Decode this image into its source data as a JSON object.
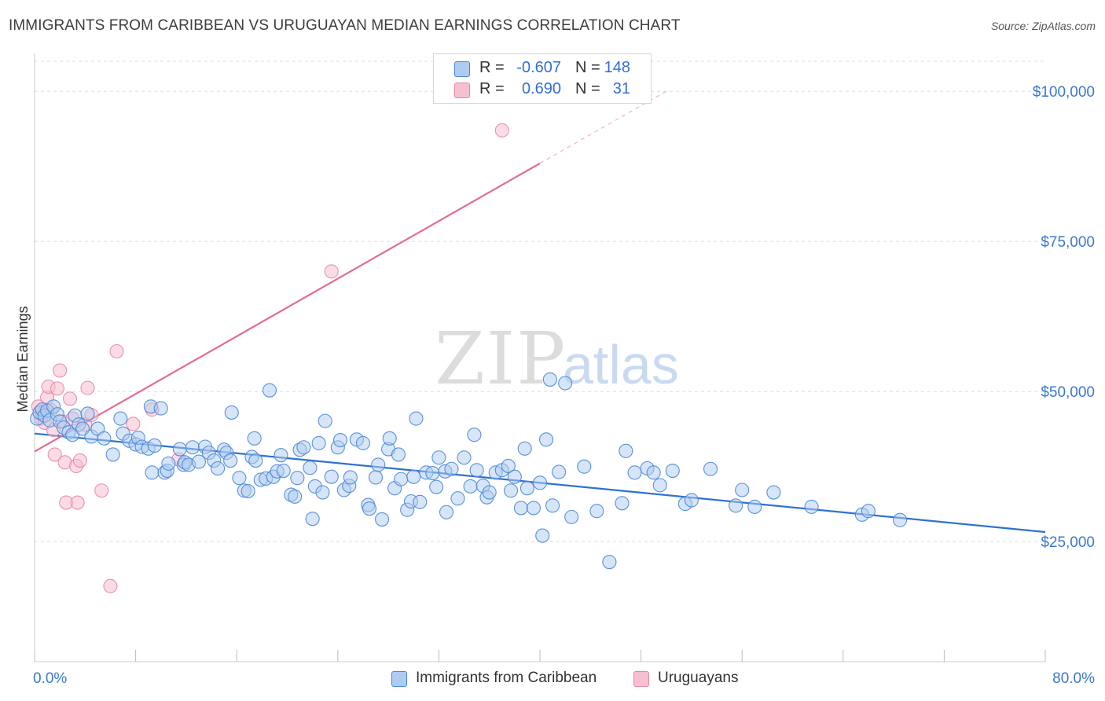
{
  "title": "IMMIGRANTS FROM CARIBBEAN VS URUGUAYAN MEDIAN EARNINGS CORRELATION CHART",
  "source": "Source: ZipAtlas.com",
  "watermark": {
    "part1": "ZIP",
    "part2": "atlas"
  },
  "legend_top": [
    {
      "r_label": "R =",
      "r_value": "-0.607",
      "n_label": "N =",
      "n_value": "148"
    },
    {
      "r_label": "R =",
      "r_value": "0.690",
      "n_label": "N =",
      "n_value": "31"
    }
  ],
  "legend_bottom": [
    {
      "label": "Immigrants from Caribbean"
    },
    {
      "label": "Uruguayans"
    }
  ],
  "colors": {
    "blue_fill": "#aecbf0",
    "blue_stroke": "#4a86d8",
    "blue_line": "#2f72d0",
    "pink_fill": "#f7c0d1",
    "pink_stroke": "#e6889f",
    "pink_line": "#e46b93",
    "grid": "#dedede",
    "tick_label": "#3b78cf"
  },
  "chart_data": {
    "type": "scatter",
    "title": "IMMIGRANTS FROM CARIBBEAN VS URUGUAYAN MEDIAN EARNINGS CORRELATION CHART",
    "xlabel": "",
    "ylabel": "Median Earnings",
    "xlim": [
      0,
      80
    ],
    "ylim": [
      5000,
      105000
    ],
    "x_tick_labels": [
      "0.0%",
      "80.0%"
    ],
    "y_ticks": [
      25000,
      50000,
      75000,
      100000
    ],
    "y_tick_labels": [
      "$25,000",
      "$50,000",
      "$75,000",
      "$100,000"
    ],
    "grid": true,
    "series": [
      {
        "name": "Immigrants from Caribbean",
        "color": "blue",
        "trend": {
          "x": [
            0,
            80
          ],
          "y": [
            43000,
            26600
          ]
        },
        "points": [
          [
            0.2,
            45500
          ],
          [
            0.4,
            46500
          ],
          [
            0.6,
            47000
          ],
          [
            0.8,
            46000
          ],
          [
            1.0,
            46800
          ],
          [
            1.2,
            45200
          ],
          [
            1.5,
            47500
          ],
          [
            1.8,
            46200
          ],
          [
            2.0,
            45000
          ],
          [
            2.3,
            44000
          ],
          [
            2.7,
            43200
          ],
          [
            3.0,
            42800
          ],
          [
            3.2,
            46000
          ],
          [
            3.5,
            44500
          ],
          [
            3.8,
            43800
          ],
          [
            4.2,
            46300
          ],
          [
            4.5,
            42500
          ],
          [
            5.0,
            43800
          ],
          [
            5.5,
            42200
          ],
          [
            6.2,
            39500
          ],
          [
            6.8,
            45500
          ],
          [
            7.0,
            43000
          ],
          [
            7.5,
            41800
          ],
          [
            8.0,
            41200
          ],
          [
            8.2,
            42300
          ],
          [
            8.5,
            40800
          ],
          [
            9.0,
            40500
          ],
          [
            9.2,
            47500
          ],
          [
            9.5,
            41000
          ],
          [
            10.0,
            47200
          ],
          [
            9.3,
            36500
          ],
          [
            10.3,
            36500
          ],
          [
            10.5,
            36800
          ],
          [
            10.6,
            38000
          ],
          [
            11.5,
            40400
          ],
          [
            11.8,
            37800
          ],
          [
            11.9,
            38200
          ],
          [
            12.2,
            37800
          ],
          [
            12.5,
            40700
          ],
          [
            13.0,
            38300
          ],
          [
            13.5,
            40800
          ],
          [
            13.8,
            39800
          ],
          [
            14.2,
            38500
          ],
          [
            14.5,
            37200
          ],
          [
            15.0,
            40300
          ],
          [
            15.2,
            39800
          ],
          [
            15.5,
            38500
          ],
          [
            15.6,
            46500
          ],
          [
            16.2,
            35600
          ],
          [
            16.6,
            33500
          ],
          [
            16.9,
            33400
          ],
          [
            17.2,
            39100
          ],
          [
            17.4,
            42200
          ],
          [
            17.5,
            38500
          ],
          [
            17.9,
            35300
          ],
          [
            18.3,
            35500
          ],
          [
            18.6,
            50200
          ],
          [
            18.9,
            35800
          ],
          [
            19.2,
            36700
          ],
          [
            19.5,
            39400
          ],
          [
            19.7,
            36800
          ],
          [
            20.3,
            32800
          ],
          [
            20.6,
            32500
          ],
          [
            20.8,
            35600
          ],
          [
            21.0,
            40300
          ],
          [
            21.3,
            40700
          ],
          [
            21.8,
            37300
          ],
          [
            22.0,
            28800
          ],
          [
            22.2,
            34200
          ],
          [
            22.5,
            41400
          ],
          [
            22.8,
            33200
          ],
          [
            23.0,
            45100
          ],
          [
            23.5,
            35800
          ],
          [
            24.0,
            40700
          ],
          [
            24.2,
            41900
          ],
          [
            24.5,
            33600
          ],
          [
            24.9,
            34300
          ],
          [
            25.0,
            35700
          ],
          [
            25.5,
            42000
          ],
          [
            26.0,
            41400
          ],
          [
            26.4,
            31100
          ],
          [
            26.5,
            30500
          ],
          [
            27.0,
            35700
          ],
          [
            27.2,
            37800
          ],
          [
            27.5,
            28700
          ],
          [
            28.0,
            40400
          ],
          [
            28.1,
            42200
          ],
          [
            28.5,
            33900
          ],
          [
            28.8,
            39500
          ],
          [
            29.0,
            35400
          ],
          [
            29.5,
            30300
          ],
          [
            29.8,
            31700
          ],
          [
            30.0,
            35800
          ],
          [
            30.2,
            45500
          ],
          [
            30.5,
            31600
          ],
          [
            31.0,
            36500
          ],
          [
            31.5,
            36400
          ],
          [
            31.8,
            34100
          ],
          [
            32.0,
            39000
          ],
          [
            32.5,
            36700
          ],
          [
            32.6,
            29900
          ],
          [
            33.0,
            37100
          ],
          [
            33.5,
            32200
          ],
          [
            34.0,
            39000
          ],
          [
            34.5,
            34200
          ],
          [
            34.8,
            42800
          ],
          [
            35.0,
            36900
          ],
          [
            35.5,
            34300
          ],
          [
            35.8,
            32400
          ],
          [
            36.0,
            33200
          ],
          [
            36.5,
            36500
          ],
          [
            37.0,
            36900
          ],
          [
            37.5,
            37600
          ],
          [
            37.7,
            33500
          ],
          [
            38.0,
            35800
          ],
          [
            38.5,
            30600
          ],
          [
            38.8,
            40500
          ],
          [
            39.0,
            33900
          ],
          [
            39.5,
            30600
          ],
          [
            40.0,
            34800
          ],
          [
            40.2,
            26000
          ],
          [
            40.5,
            42000
          ],
          [
            40.8,
            52000
          ],
          [
            41.0,
            31000
          ],
          [
            41.5,
            36600
          ],
          [
            42.0,
            51400
          ],
          [
            42.5,
            29100
          ],
          [
            43.5,
            37500
          ],
          [
            44.5,
            30100
          ],
          [
            45.5,
            21600
          ],
          [
            46.5,
            31400
          ],
          [
            46.8,
            40100
          ],
          [
            47.5,
            36500
          ],
          [
            48.5,
            37200
          ],
          [
            49.0,
            36500
          ],
          [
            49.5,
            34400
          ],
          [
            50.5,
            36800
          ],
          [
            51.5,
            31300
          ],
          [
            52.0,
            31900
          ],
          [
            53.5,
            37100
          ],
          [
            55.5,
            31000
          ],
          [
            56.0,
            33600
          ],
          [
            57.0,
            30800
          ],
          [
            58.5,
            33200
          ],
          [
            61.5,
            30800
          ],
          [
            65.5,
            29500
          ],
          [
            66.0,
            30100
          ],
          [
            68.5,
            28600
          ]
        ]
      },
      {
        "name": "Uruguayans",
        "color": "pink",
        "trend": {
          "x": [
            0,
            40
          ],
          "y": [
            40000,
            88000
          ],
          "dashed_to": {
            "x": 50,
            "y": 100000
          }
        },
        "points": [
          [
            0.3,
            47500
          ],
          [
            0.5,
            45500
          ],
          [
            0.6,
            46200
          ],
          [
            0.8,
            44800
          ],
          [
            0.9,
            47000
          ],
          [
            1.0,
            49000
          ],
          [
            1.1,
            50800
          ],
          [
            1.3,
            46900
          ],
          [
            1.5,
            43600
          ],
          [
            1.6,
            39500
          ],
          [
            1.8,
            50500
          ],
          [
            2.0,
            53500
          ],
          [
            2.2,
            45000
          ],
          [
            2.4,
            38200
          ],
          [
            2.5,
            31500
          ],
          [
            2.8,
            48800
          ],
          [
            3.0,
            45500
          ],
          [
            3.3,
            37600
          ],
          [
            3.4,
            31500
          ],
          [
            3.6,
            38500
          ],
          [
            4.0,
            44500
          ],
          [
            4.2,
            50600
          ],
          [
            4.5,
            46100
          ],
          [
            5.3,
            33500
          ],
          [
            6.0,
            17600
          ],
          [
            6.5,
            56700
          ],
          [
            7.8,
            44600
          ],
          [
            9.3,
            47000
          ],
          [
            11.4,
            38700
          ],
          [
            23.5,
            70000
          ],
          [
            37.0,
            93500
          ]
        ]
      }
    ]
  }
}
